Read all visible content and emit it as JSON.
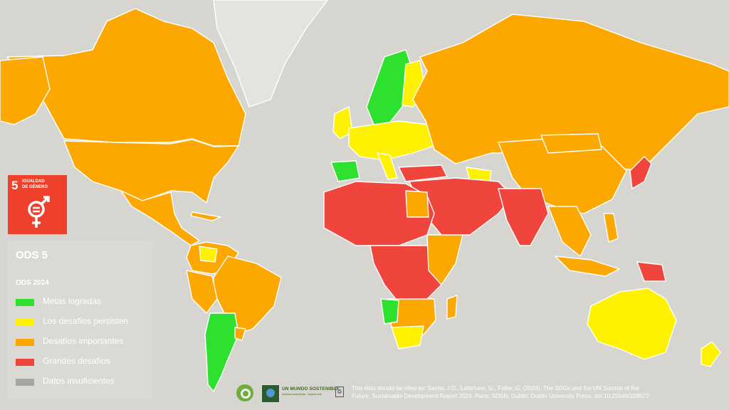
{
  "colors": {
    "ocean": "#d6d5cf",
    "achieved": "#2fe12f",
    "challenges_remain": "#fff200",
    "significant": "#fca800",
    "major": "#f0453c",
    "insufficient": "#a6a6a6",
    "sdg5_red": "#ef402b"
  },
  "sdg_badge": {
    "number": "5",
    "title_line1": "IGUALDAD",
    "title_line2": "DE GÉNERO",
    "icon": "gender-equality-icon"
  },
  "legend": {
    "title": "ODS 5",
    "subtitle": "ODS 2024",
    "items": [
      {
        "label": "Metas logradas",
        "color": "#2fe12f"
      },
      {
        "label": "Los desafíos persisten",
        "color": "#fff200"
      },
      {
        "label": "Desafíos importantes",
        "color": "#fca800"
      },
      {
        "label": "Grandes desafíos",
        "color": "#f0453c"
      },
      {
        "label": "Datos insuficientes",
        "color": "#a6a6a6"
      }
    ]
  },
  "logos": {
    "qgis_icon": "qgis-logo-icon",
    "brand_icon": "un-mundo-sostenible-logo-icon",
    "brand_name": "UN MUNDO SOSTENIBLE",
    "brand_tagline": "acciones conscientes · impacto real"
  },
  "citation": {
    "line1": "This data should be cited as:  Sachs, J.D., Lafortune, G., Fuller, G. (2024). The SDGs and the UN Summit of the",
    "line2": "Future. Sustainable Development Report 2024. Paris: SDSN, Dublin: Dublin University Press. doi:10.25546/108572"
  }
}
